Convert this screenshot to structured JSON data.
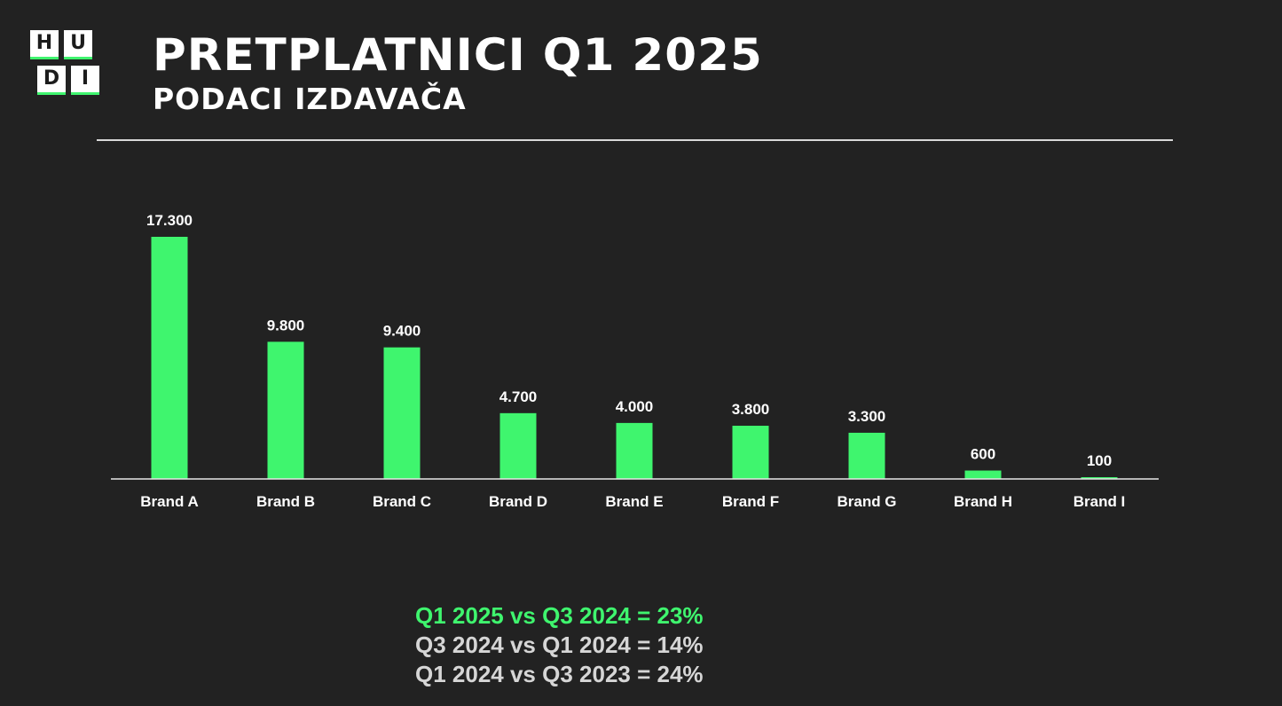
{
  "logo": {
    "letters": [
      "H",
      "U",
      "D",
      "I"
    ],
    "accent": "#3ff56e"
  },
  "header": {
    "title": "PRETPLATNICI Q1 2025",
    "subtitle": "PODACI IZDAVAČA"
  },
  "colors": {
    "background": "#222222",
    "bar": "#3ff56e",
    "text": "#ffffff",
    "note_muted": "#d6d6d6"
  },
  "chart_data": {
    "type": "bar",
    "categories": [
      "Brand A",
      "Brand B",
      "Brand C",
      "Brand D",
      "Brand E",
      "Brand F",
      "Brand G",
      "Brand H",
      "Brand I"
    ],
    "values": [
      17300,
      9800,
      9400,
      4700,
      4000,
      3800,
      3300,
      600,
      100
    ],
    "value_labels": [
      "17.300",
      "9.800",
      "9.400",
      "4.700",
      "4.000",
      "3.800",
      "3.300",
      "600",
      "100"
    ],
    "title": "",
    "xlabel": "",
    "ylabel": "",
    "ylim": [
      0,
      17300
    ],
    "grid": false,
    "legend": "none"
  },
  "notes": [
    {
      "text": "Q1 2025 vs Q3 2024 = 23%",
      "highlight": true
    },
    {
      "text": "Q3 2024 vs Q1 2024 = 14%",
      "highlight": false
    },
    {
      "text": "Q1 2024 vs Q3 2023 = 24%",
      "highlight": false
    }
  ]
}
